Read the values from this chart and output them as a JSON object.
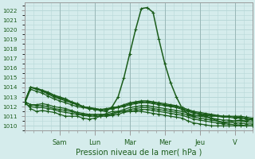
{
  "xlabel": "Pression niveau de la mer( hPa )",
  "ylim": [
    1009.5,
    1022.8
  ],
  "yticks": [
    1010,
    1011,
    1012,
    1013,
    1014,
    1015,
    1016,
    1017,
    1018,
    1019,
    1020,
    1021,
    1022
  ],
  "day_labels": [
    "Sam",
    "Lun",
    "Mar",
    "Mer",
    "Jeu",
    "V"
  ],
  "day_positions": [
    24,
    48,
    72,
    96,
    120,
    144
  ],
  "xlim": [
    0,
    156
  ],
  "background_color": "#d5ecec",
  "grid_color": "#b8d8d8",
  "line_color": "#1a5c1a",
  "main_line": [
    1012.5,
    1014.0,
    1013.9,
    1013.7,
    1013.5,
    1013.2,
    1013.0,
    1012.8,
    1012.5,
    1012.3,
    1012.0,
    1011.8,
    1011.7,
    1011.6,
    1011.5,
    1012.0,
    1013.0,
    1015.0,
    1017.5,
    1020.0,
    1022.2,
    1022.3,
    1021.8,
    1019.0,
    1016.5,
    1014.5,
    1013.0,
    1011.8,
    1011.2,
    1011.0,
    1011.1,
    1011.0,
    1010.8,
    1010.5,
    1010.3,
    1010.4,
    1010.5,
    1010.6,
    1010.5,
    1010.7
  ],
  "flat_lines": [
    [
      1012.5,
      1014.0,
      1013.9,
      1013.7,
      1013.4,
      1013.1,
      1012.9,
      1012.7,
      1012.4,
      1012.2,
      1012.0,
      1011.9,
      1011.8,
      1011.7,
      1011.8,
      1011.9,
      1012.0,
      1012.2,
      1012.4,
      1012.5,
      1012.6,
      1012.6,
      1012.5,
      1012.4,
      1012.3,
      1012.2,
      1012.1,
      1011.9,
      1011.7,
      1011.5,
      1011.4,
      1011.3,
      1011.2,
      1011.1,
      1011.0,
      1011.0,
      1011.0,
      1011.0,
      1010.9,
      1010.8
    ],
    [
      1012.5,
      1014.0,
      1013.8,
      1013.6,
      1013.3,
      1013.0,
      1012.8,
      1012.6,
      1012.4,
      1012.2,
      1012.0,
      1011.9,
      1011.8,
      1011.7,
      1011.7,
      1011.8,
      1011.9,
      1012.1,
      1012.3,
      1012.4,
      1012.5,
      1012.5,
      1012.4,
      1012.3,
      1012.2,
      1012.1,
      1012.0,
      1011.8,
      1011.6,
      1011.4,
      1011.3,
      1011.2,
      1011.1,
      1011.0,
      1011.0,
      1011.0,
      1010.9,
      1010.9,
      1010.8,
      1010.7
    ],
    [
      1012.3,
      1013.8,
      1013.6,
      1013.4,
      1013.1,
      1012.8,
      1012.6,
      1012.4,
      1012.2,
      1012.0,
      1011.9,
      1011.8,
      1011.7,
      1011.7,
      1011.7,
      1011.8,
      1011.9,
      1012.0,
      1012.2,
      1012.3,
      1012.4,
      1012.4,
      1012.3,
      1012.2,
      1012.1,
      1012.0,
      1011.9,
      1011.7,
      1011.5,
      1011.3,
      1011.2,
      1011.1,
      1011.0,
      1011.0,
      1010.9,
      1010.9,
      1010.8,
      1010.8,
      1010.7,
      1010.6
    ],
    [
      1012.5,
      1012.2,
      1012.2,
      1012.3,
      1012.2,
      1012.0,
      1011.9,
      1011.8,
      1011.6,
      1011.4,
      1011.3,
      1011.2,
      1011.2,
      1011.2,
      1011.2,
      1011.3,
      1011.5,
      1011.7,
      1011.9,
      1012.0,
      1012.1,
      1012.1,
      1012.0,
      1011.9,
      1011.8,
      1011.7,
      1011.6,
      1011.5,
      1011.3,
      1011.1,
      1011.0,
      1010.9,
      1010.8,
      1010.7,
      1010.6,
      1010.6,
      1010.5,
      1010.5,
      1010.4,
      1010.4
    ],
    [
      1012.5,
      1012.2,
      1012.1,
      1012.1,
      1012.0,
      1011.8,
      1011.7,
      1011.6,
      1011.5,
      1011.3,
      1011.2,
      1011.1,
      1011.1,
      1011.1,
      1011.1,
      1011.2,
      1011.4,
      1011.5,
      1011.7,
      1011.8,
      1011.9,
      1011.9,
      1011.8,
      1011.7,
      1011.6,
      1011.5,
      1011.4,
      1011.3,
      1011.1,
      1010.9,
      1010.8,
      1010.7,
      1010.6,
      1010.5,
      1010.4,
      1010.4,
      1010.3,
      1010.3,
      1010.2,
      1010.2
    ],
    [
      1012.3,
      1012.0,
      1011.9,
      1011.9,
      1011.8,
      1011.7,
      1011.5,
      1011.4,
      1011.3,
      1011.2,
      1011.1,
      1011.0,
      1011.0,
      1011.0,
      1011.0,
      1011.1,
      1011.2,
      1011.4,
      1011.5,
      1011.6,
      1011.7,
      1011.7,
      1011.6,
      1011.5,
      1011.4,
      1011.3,
      1011.2,
      1011.1,
      1010.9,
      1010.7,
      1010.6,
      1010.5,
      1010.4,
      1010.3,
      1010.2,
      1010.2,
      1010.1,
      1010.1,
      1010.0,
      1010.0
    ],
    [
      1012.5,
      1011.8,
      1011.5,
      1011.6,
      1011.5,
      1011.4,
      1011.2,
      1011.0,
      1011.0,
      1011.0,
      1010.8,
      1010.7,
      1010.8,
      1011.0,
      1011.3,
      1011.5,
      1011.5,
      1011.5,
      1011.5,
      1011.5,
      1011.5,
      1011.4,
      1011.3,
      1011.2,
      1011.1,
      1011.0,
      1010.9,
      1010.8,
      1010.5,
      1010.3,
      1010.2,
      1010.1,
      1010.0,
      1010.0,
      1010.0,
      1010.0,
      1010.0,
      1010.0,
      1010.0,
      1010.0
    ]
  ]
}
